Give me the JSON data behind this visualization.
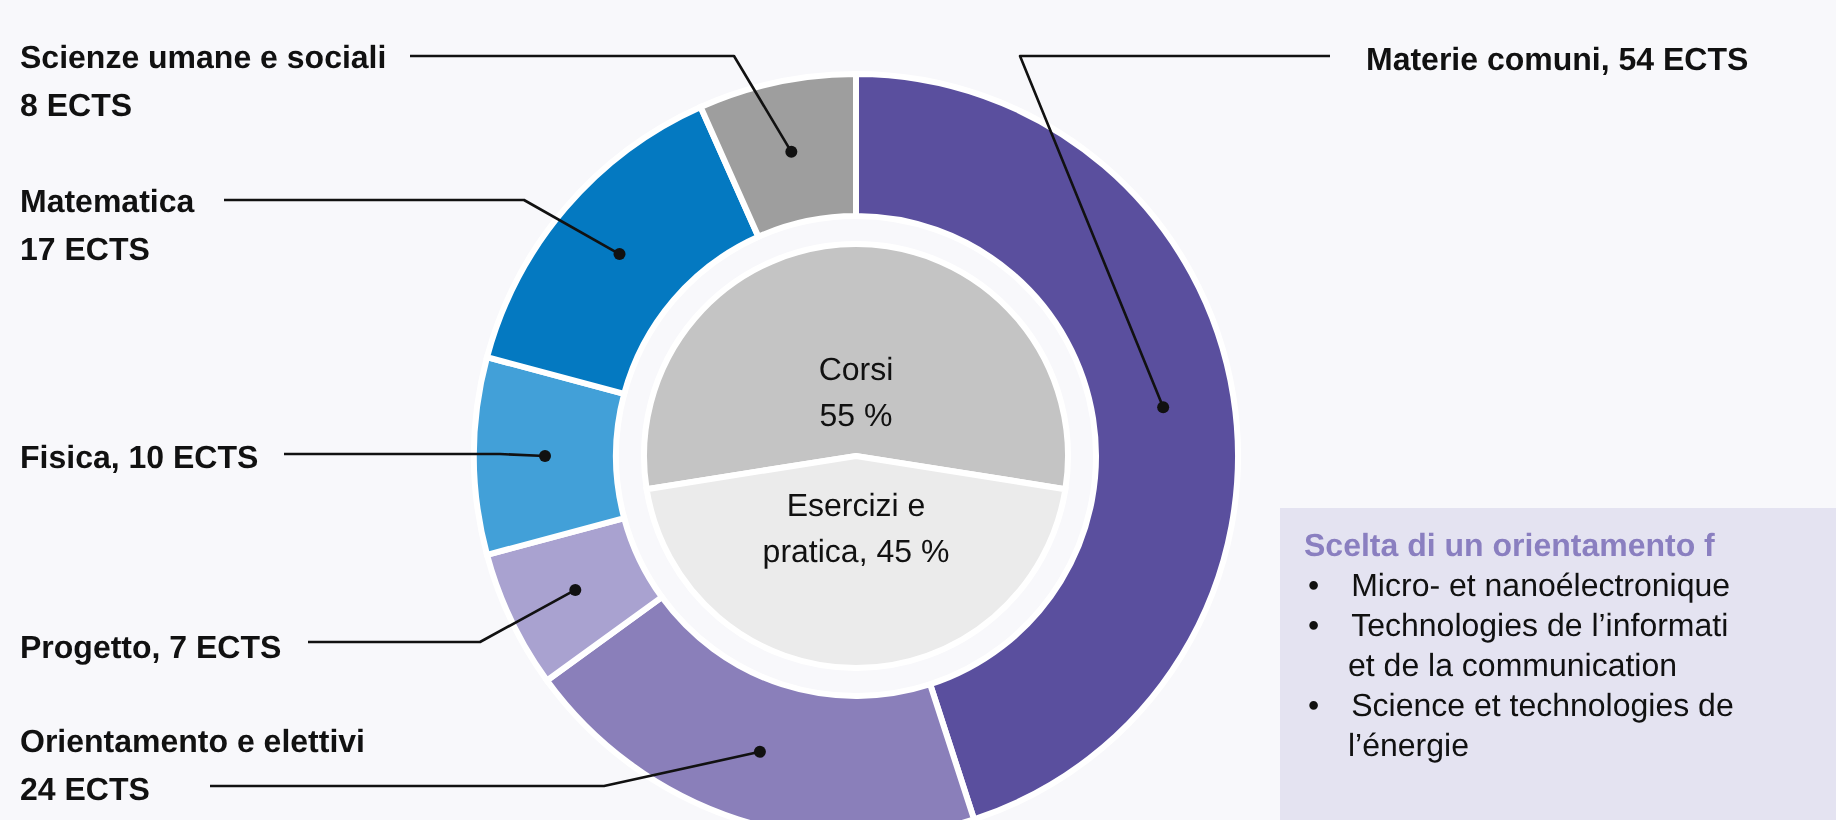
{
  "chart_data": [
    {
      "type": "donut",
      "categories": [
        "Materie comuni, 54 ECTS",
        "Orientamento e elettivi 24 ECTS",
        "Progetto, 7 ECTS",
        "Fisica, 10 ECTS",
        "Matematica 17 ECTS",
        "Scienze umane e sociali 8 ECTS"
      ],
      "values": [
        54,
        24,
        7,
        10,
        17,
        8
      ],
      "colors": [
        "#5a4f9e",
        "#8a7fba",
        "#a9a2d0",
        "#42a0d8",
        "#0479c1",
        "#9e9e9e"
      ],
      "annotations": [
        "Scelta di un orientamento f",
        "• Micro- et nanoélectronique",
        "• Technologies de l’informati",
        "et de la communication",
        "• Science et technologies de",
        "l’énergie"
      ]
    },
    {
      "type": "pie",
      "categories": [
        "Corsi 55 %",
        "Esercizi e pratica, 45 %"
      ],
      "values": [
        55,
        45
      ],
      "colors": [
        "#c4c4c4",
        "#ebebeb"
      ]
    }
  ]
}
